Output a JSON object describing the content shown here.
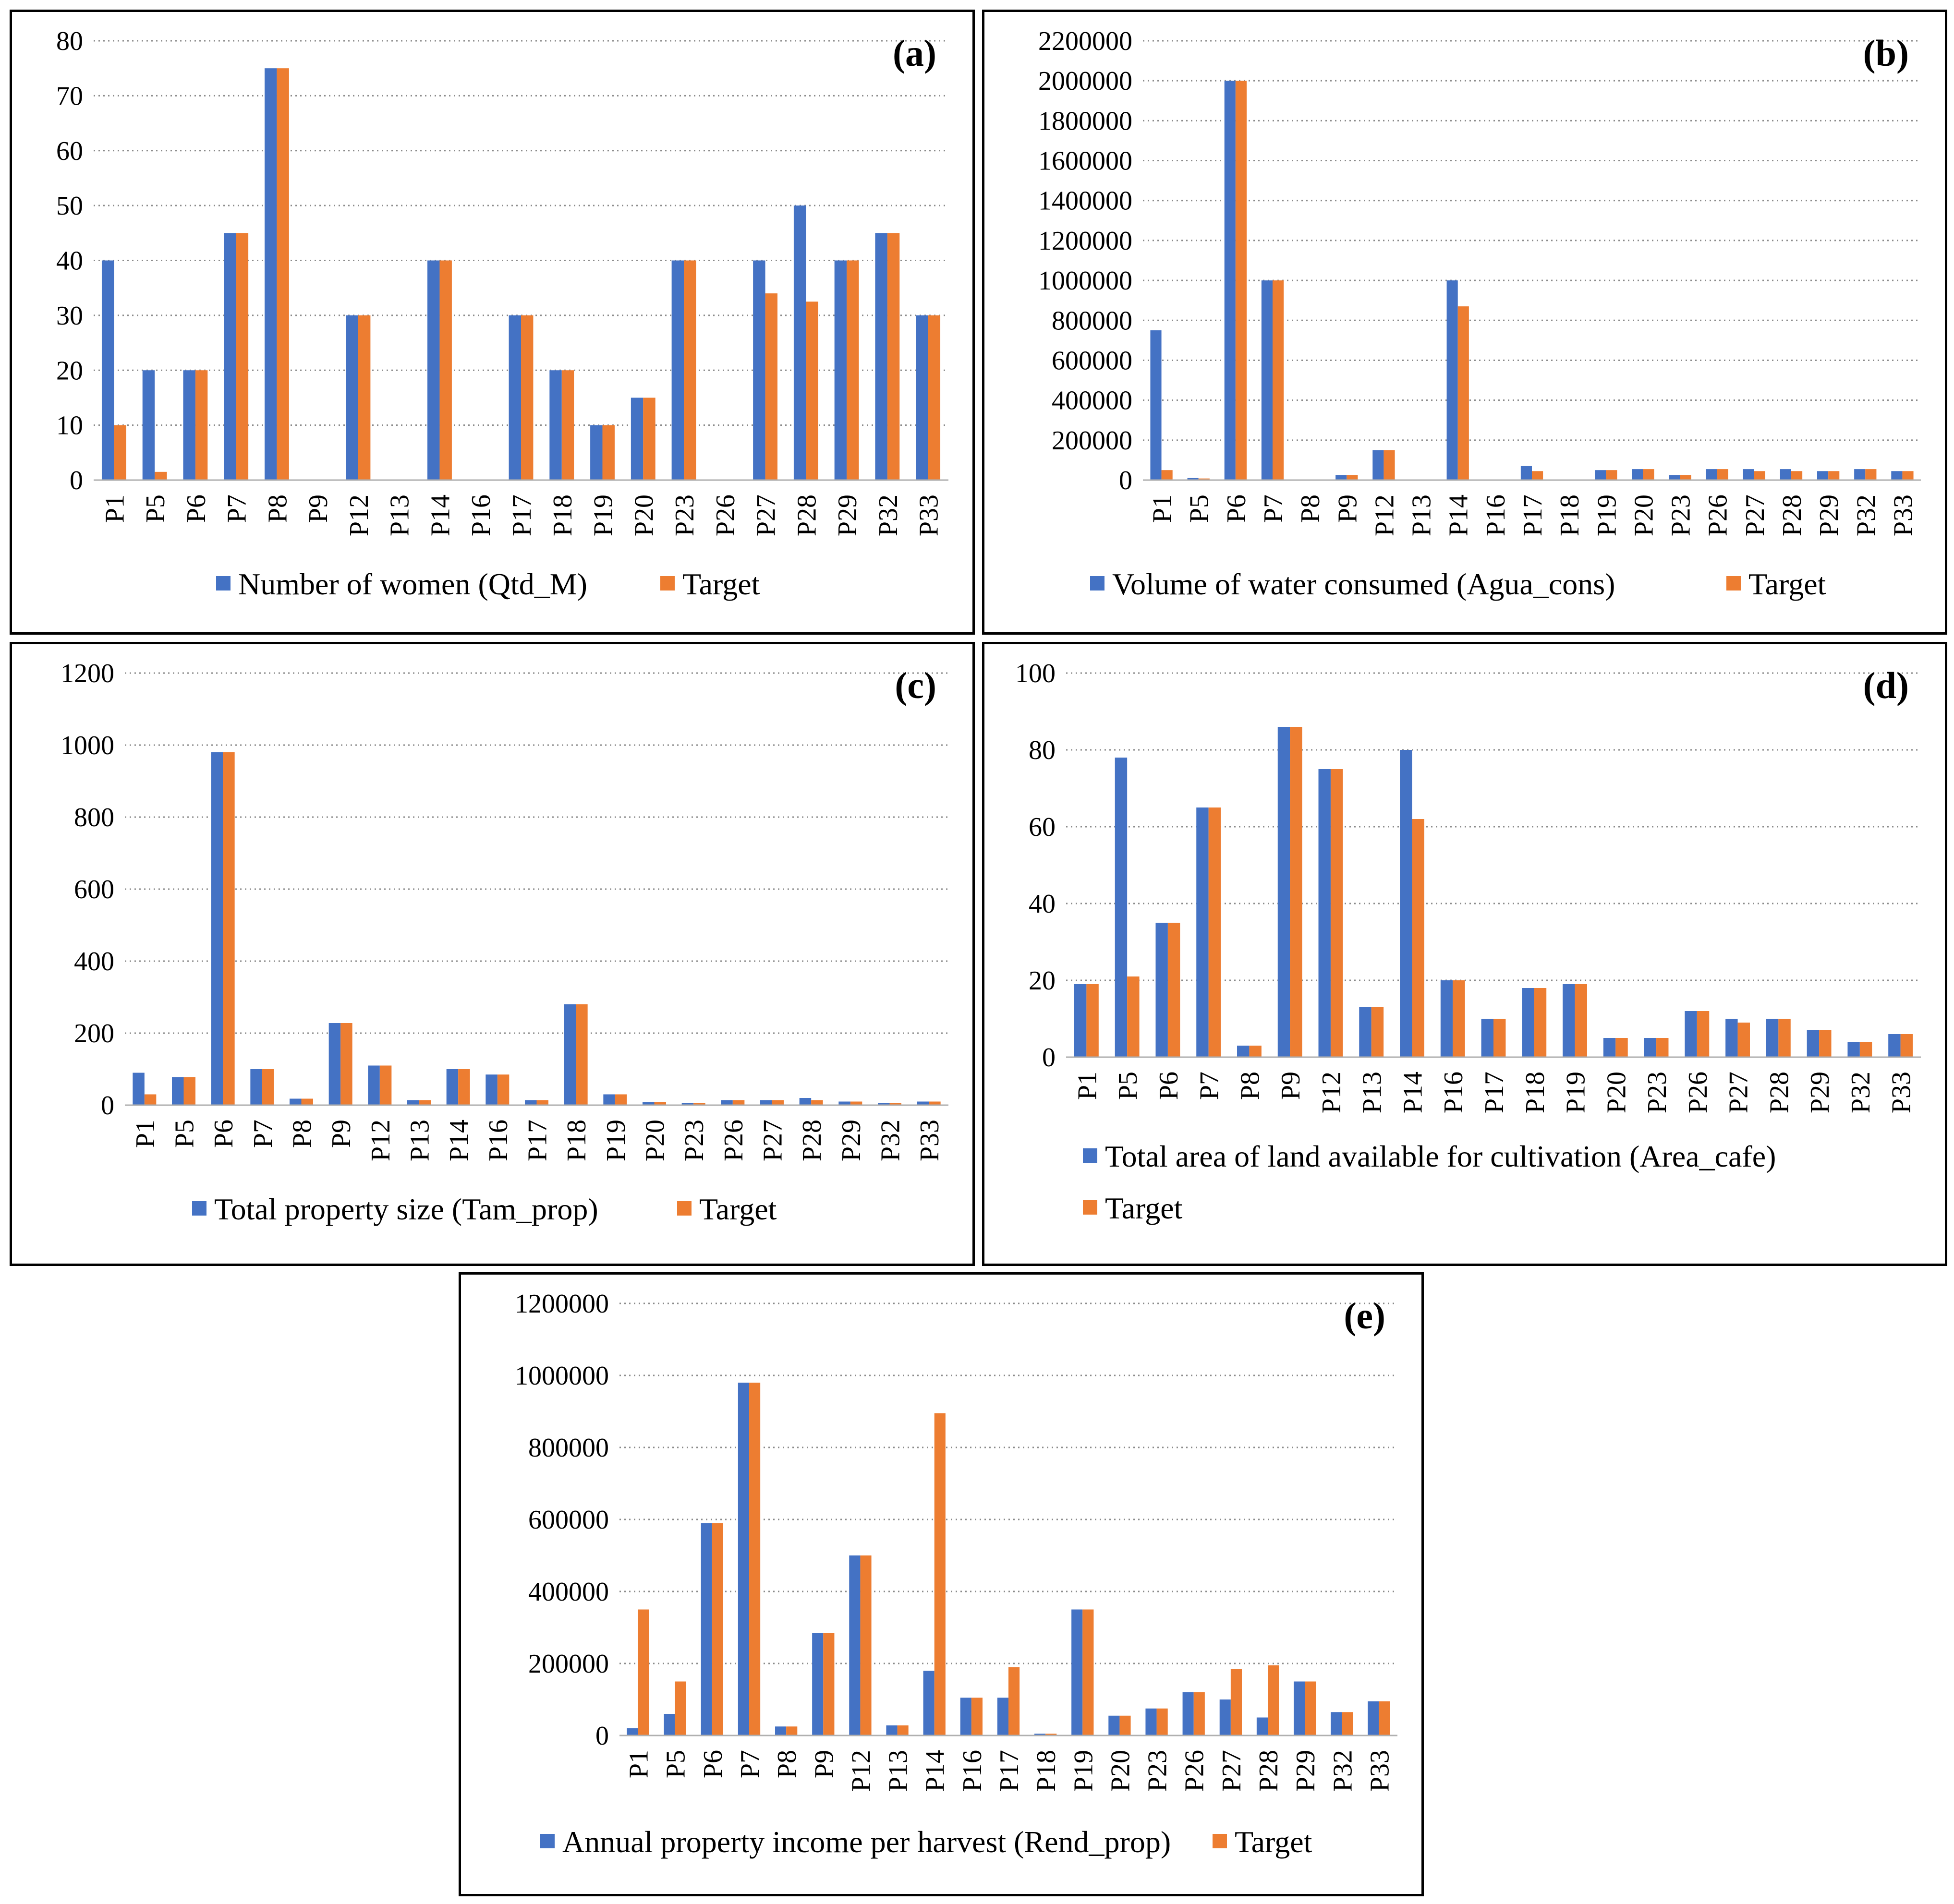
{
  "colors": {
    "blue": "#4472C4",
    "orange": "#ED7D31"
  },
  "chart_data": [
    {
      "type": "bar",
      "panel": "(a)",
      "categories": [
        "P1",
        "P5",
        "P6",
        "P7",
        "P8",
        "P9",
        "P12",
        "P13",
        "P14",
        "P16",
        "P17",
        "P18",
        "P19",
        "P20",
        "P23",
        "P26",
        "P27",
        "P28",
        "P29",
        "P32",
        "P33"
      ],
      "series": [
        {
          "name": "Number of women (Qtd_M)",
          "values": [
            40,
            20,
            20,
            45,
            75,
            0,
            30,
            0,
            40,
            0,
            30,
            20,
            10,
            15,
            40,
            0,
            40,
            50,
            40,
            45,
            30
          ]
        },
        {
          "name": "Target",
          "values": [
            10,
            1.5,
            20,
            45,
            75,
            0,
            30,
            0,
            40,
            0,
            30,
            20,
            10,
            15,
            40,
            0,
            34,
            32.5,
            40,
            45,
            30
          ]
        }
      ],
      "ylim": [
        0,
        80
      ],
      "yticks": [
        "0",
        "10",
        "20",
        "30",
        "40",
        "50",
        "60",
        "70",
        "80"
      ],
      "legend": "bottom"
    },
    {
      "type": "bar",
      "panel": "(b)",
      "categories": [
        "P1",
        "P5",
        "P6",
        "P7",
        "P8",
        "P9",
        "P12",
        "P13",
        "P14",
        "P16",
        "P17",
        "P18",
        "P19",
        "P20",
        "P23",
        "P26",
        "P27",
        "P28",
        "P29",
        "P32",
        "P33"
      ],
      "series": [
        {
          "name": "Volume of water consumed (Agua_cons)",
          "values": [
            750000,
            10000,
            2000000,
            1000000,
            0,
            25000,
            150000,
            0,
            1000000,
            0,
            70000,
            0,
            50000,
            55000,
            25000,
            55000,
            55000,
            55000,
            45000,
            55000,
            45000
          ]
        },
        {
          "name": "Target",
          "values": [
            50000,
            8000,
            2000000,
            1000000,
            0,
            25000,
            150000,
            0,
            870000,
            0,
            45000,
            0,
            50000,
            55000,
            25000,
            55000,
            45000,
            45000,
            45000,
            55000,
            45000
          ]
        }
      ],
      "ylim": [
        0,
        2200000
      ],
      "yticks": [
        "0",
        "200000",
        "400000",
        "600000",
        "800000",
        "1000000",
        "1200000",
        "1400000",
        "1600000",
        "1800000",
        "2000000",
        "2200000"
      ],
      "legend": "bottom"
    },
    {
      "type": "bar",
      "panel": "(c)",
      "categories": [
        "P1",
        "P5",
        "P6",
        "P7",
        "P8",
        "P9",
        "P12",
        "P13",
        "P14",
        "P16",
        "P17",
        "P18",
        "P19",
        "P20",
        "P23",
        "P26",
        "P27",
        "P28",
        "P29",
        "P32",
        "P33"
      ],
      "series": [
        {
          "name": "Total property size (Tam_prop)",
          "values": [
            90,
            78,
            980,
            100,
            18,
            228,
            110,
            14,
            100,
            85,
            14,
            280,
            30,
            8,
            6,
            14,
            14,
            20,
            10,
            6,
            10
          ]
        },
        {
          "name": "Target",
          "values": [
            30,
            78,
            980,
            100,
            18,
            228,
            110,
            14,
            100,
            85,
            14,
            280,
            30,
            8,
            6,
            14,
            14,
            14,
            10,
            6,
            10
          ]
        }
      ],
      "ylim": [
        0,
        1200
      ],
      "yticks": [
        "0",
        "200",
        "400",
        "600",
        "800",
        "1000",
        "1200"
      ],
      "legend": "bottom"
    },
    {
      "type": "bar",
      "panel": "(d)",
      "categories": [
        "P1",
        "P5",
        "P6",
        "P7",
        "P8",
        "P9",
        "P12",
        "P13",
        "P14",
        "P16",
        "P17",
        "P18",
        "P19",
        "P20",
        "P23",
        "P26",
        "P27",
        "P28",
        "P29",
        "P32",
        "P33"
      ],
      "series": [
        {
          "name": "Total area of land available for cultivation (Area_cafe)",
          "values": [
            19,
            78,
            35,
            65,
            3,
            86,
            75,
            13,
            80,
            20,
            10,
            18,
            19,
            5,
            5,
            12,
            10,
            10,
            7,
            4,
            6
          ]
        },
        {
          "name": "Target",
          "values": [
            19,
            21,
            35,
            65,
            3,
            86,
            75,
            13,
            62,
            20,
            10,
            18,
            19,
            5,
            5,
            12,
            9,
            10,
            7,
            4,
            6
          ]
        }
      ],
      "ylim": [
        0,
        100
      ],
      "yticks": [
        "0",
        "20",
        "40",
        "60",
        "80",
        "100"
      ],
      "legend": "bottom"
    },
    {
      "type": "bar",
      "panel": "(e)",
      "categories": [
        "P1",
        "P5",
        "P6",
        "P7",
        "P8",
        "P9",
        "P12",
        "P13",
        "P14",
        "P16",
        "P17",
        "P18",
        "P19",
        "P20",
        "P23",
        "P26",
        "P27",
        "P28",
        "P29",
        "P32",
        "P33"
      ],
      "series": [
        {
          "name": "Annual property income per harvest (Rend_prop)",
          "values": [
            20000,
            60000,
            590000,
            980000,
            25000,
            285000,
            500000,
            28000,
            180000,
            105000,
            105000,
            5000,
            350000,
            55000,
            75000,
            120000,
            100000,
            50000,
            150000,
            65000,
            95000
          ]
        },
        {
          "name": "Target",
          "values": [
            350000,
            150000,
            590000,
            980000,
            25000,
            285000,
            500000,
            28000,
            895000,
            105000,
            190000,
            5000,
            350000,
            55000,
            75000,
            120000,
            185000,
            195000,
            150000,
            65000,
            95000
          ]
        }
      ],
      "ylim": [
        0,
        1200000
      ],
      "yticks": [
        "0",
        "200000",
        "400000",
        "600000",
        "800000",
        "1000000",
        "1200000"
      ],
      "legend": "bottom"
    }
  ]
}
